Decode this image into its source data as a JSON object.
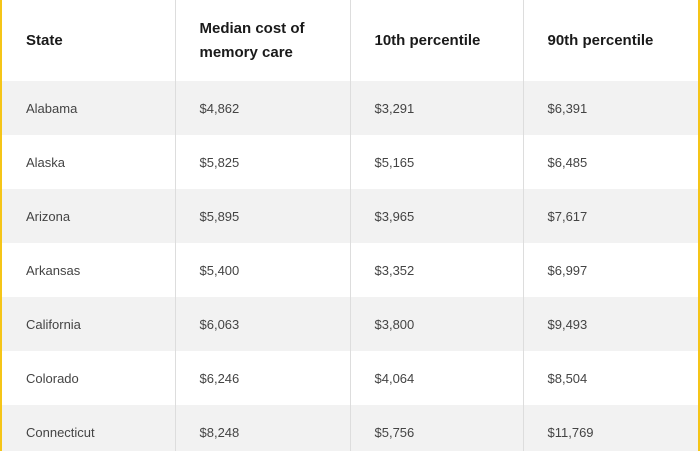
{
  "table": {
    "headers": [
      "State",
      "Median cost of memory care",
      "10th percentile",
      "90th percentile"
    ],
    "rows": [
      [
        "Alabama",
        "$4,862",
        "$3,291",
        "$6,391"
      ],
      [
        "Alaska",
        "$5,825",
        "$5,165",
        "$6,485"
      ],
      [
        "Arizona",
        "$5,895",
        "$3,965",
        "$7,617"
      ],
      [
        "Arkansas",
        "$5,400",
        "$3,352",
        "$6,997"
      ],
      [
        "California",
        "$6,063",
        "$3,800",
        "$9,493"
      ],
      [
        "Colorado",
        "$6,246",
        "$4,064",
        "$8,504"
      ],
      [
        "Connecticut",
        "$8,248",
        "$5,756",
        "$11,769"
      ]
    ]
  },
  "colors": {
    "frame_border": "#f5c518",
    "row_alt_background": "#f2f2f2",
    "row_background": "#ffffff",
    "header_text": "#1a1a1a",
    "cell_text": "#444444"
  }
}
